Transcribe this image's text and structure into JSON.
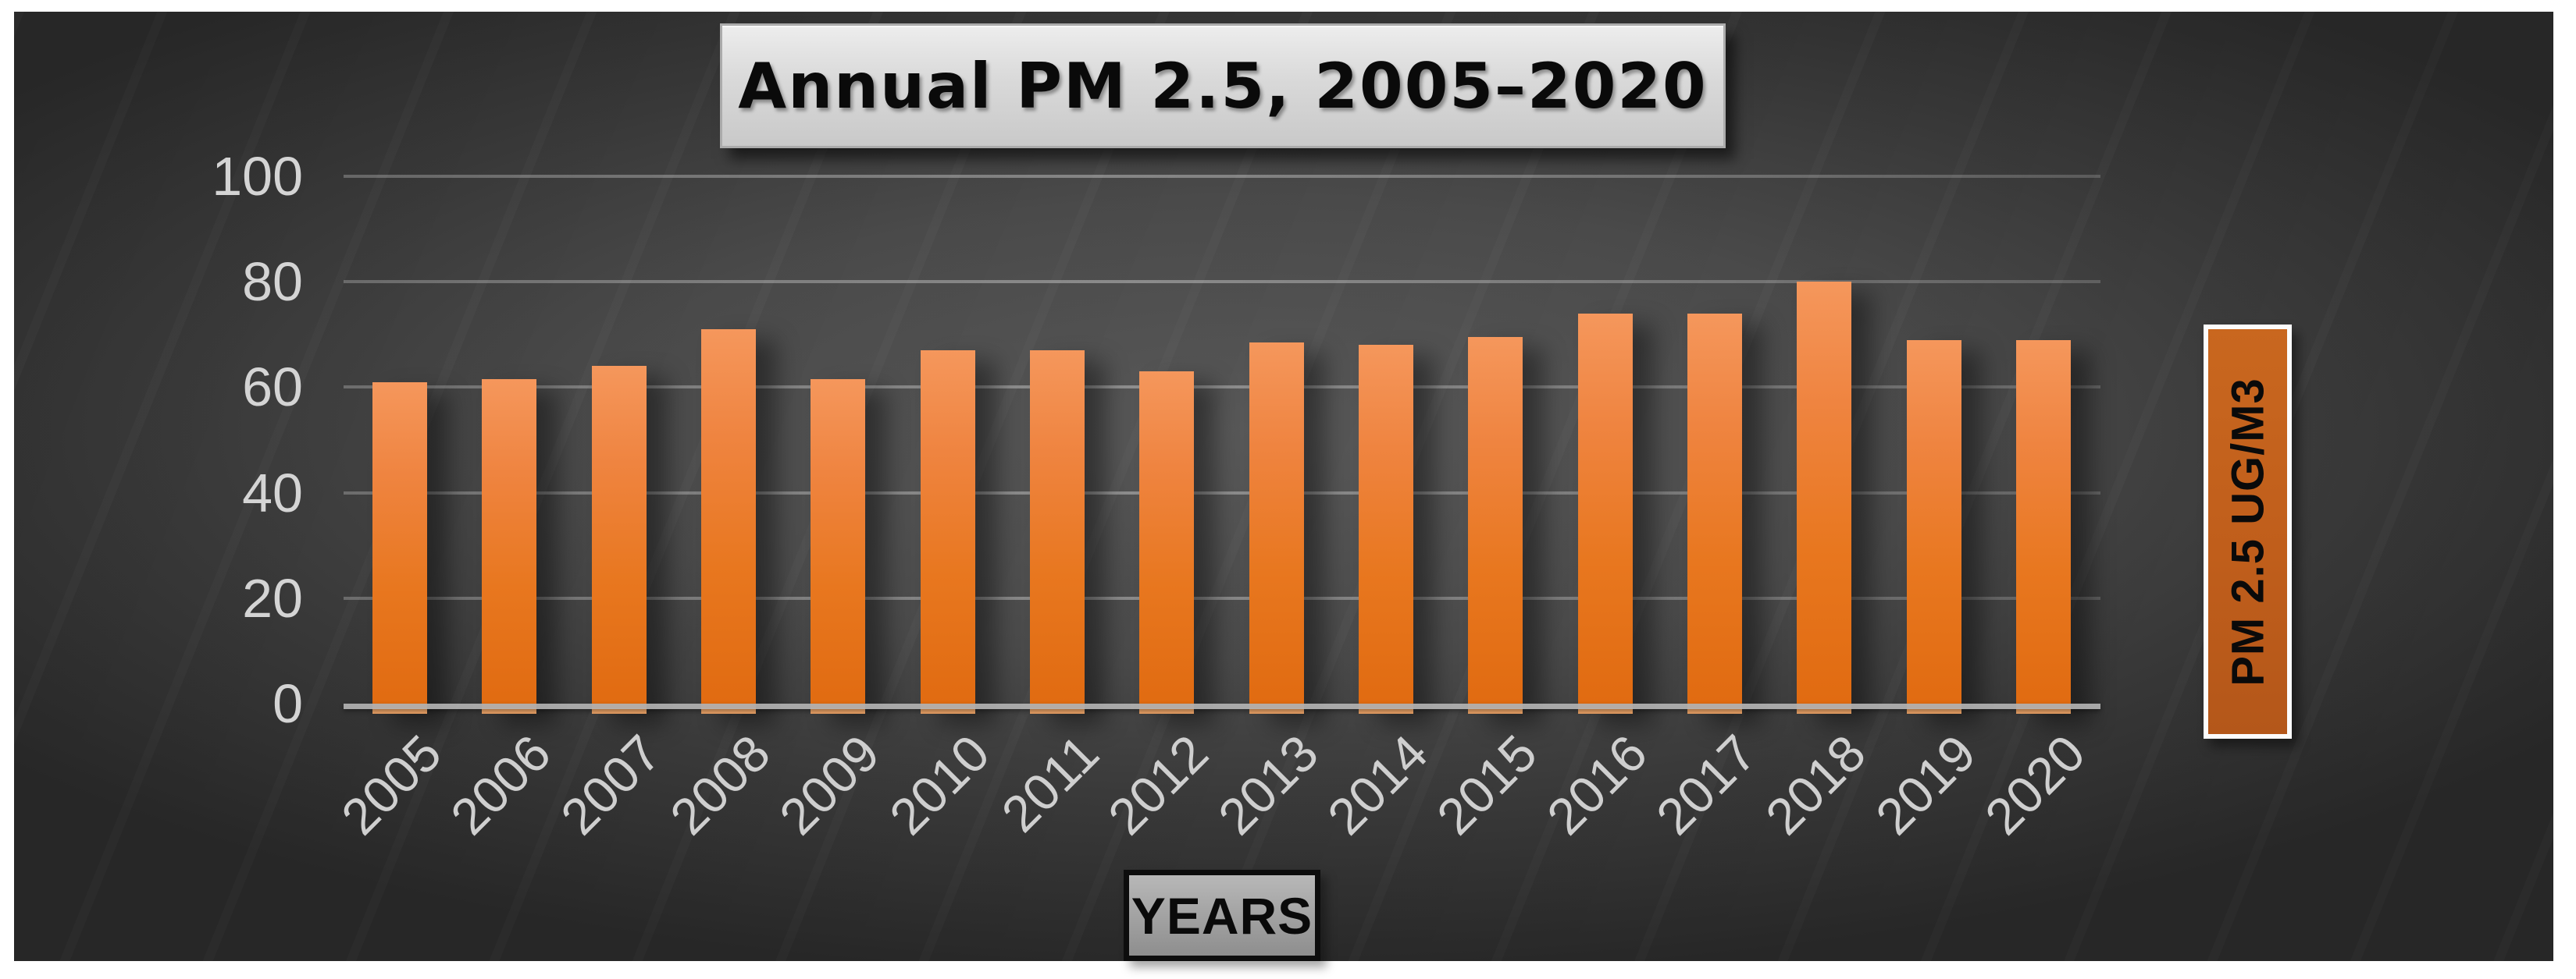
{
  "title": {
    "text": "Annual PM 2.5, 2005–2020"
  },
  "y_axis": {
    "tick_labels": [
      "100",
      "80",
      "60",
      "40",
      "20",
      "0"
    ]
  },
  "x_axis": {
    "title": "YEARS"
  },
  "legend": {
    "title": "PM 2.5 UG/M3",
    "position": "right"
  },
  "chart_data": {
    "type": "bar",
    "title": "Annual PM 2.5, 2005–2020",
    "categories": [
      "2005",
      "2006",
      "2007",
      "2008",
      "2009",
      "2010",
      "2011",
      "2012",
      "2013",
      "2014",
      "2015",
      "2016",
      "2017",
      "2018",
      "2019",
      "2020"
    ],
    "values": [
      61,
      61.5,
      64,
      71,
      61.5,
      67,
      67,
      63,
      68.5,
      68,
      69.5,
      74,
      74,
      80,
      69,
      69
    ],
    "series": [
      {
        "name": "PM 2.5 UG/M3",
        "values": [
          61,
          61.5,
          64,
          71,
          61.5,
          67,
          67,
          63,
          68.5,
          68,
          69.5,
          74,
          74,
          80,
          69,
          69
        ]
      }
    ],
    "xlabel": "YEARS",
    "ylabel": "PM 2.5 UG/M3",
    "ylim": [
      0,
      100
    ],
    "y_ticks": [
      100,
      80,
      60,
      40,
      20,
      0
    ],
    "grid": true,
    "legend_position": "right",
    "colors": {
      "bar_gradient_top": "#F5975C",
      "bar_gradient_bottom": "#E06A10",
      "legend_fill": "#C05E1B",
      "legend_border": "#FCFCFC",
      "panel_center": "#585858",
      "panel_edge": "#272727",
      "gridline": "#7A7A7A",
      "axis_line": "#B2B2B2",
      "tick_label": "#D4D4D4",
      "title_box_fill": "#D9D9D9",
      "years_box_fill": "#A5A5A5",
      "page_margin": "#FFFFFF"
    }
  }
}
